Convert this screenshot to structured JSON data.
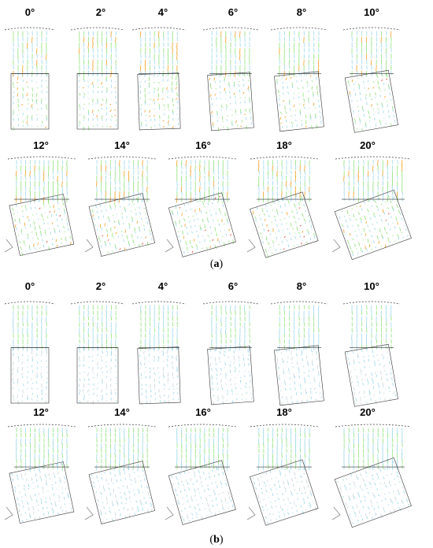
{
  "figure": {
    "angles_row1": [
      "0°",
      "2°",
      "4°",
      "6°",
      "8°",
      "10°"
    ],
    "angles_row2": [
      "12°",
      "14°",
      "16°",
      "18°",
      "20°"
    ],
    "subfigure_a": {
      "open": "(",
      "letter": "a",
      "close": ")"
    },
    "subfigure_b": {
      "open": "(",
      "letter": "b",
      "close": ")"
    }
  },
  "colors": {
    "low": "#9ad7e8",
    "mid": "#8fe07a",
    "high": "#f0a020",
    "peak": "#e03c24",
    "outline": "#333333"
  }
}
